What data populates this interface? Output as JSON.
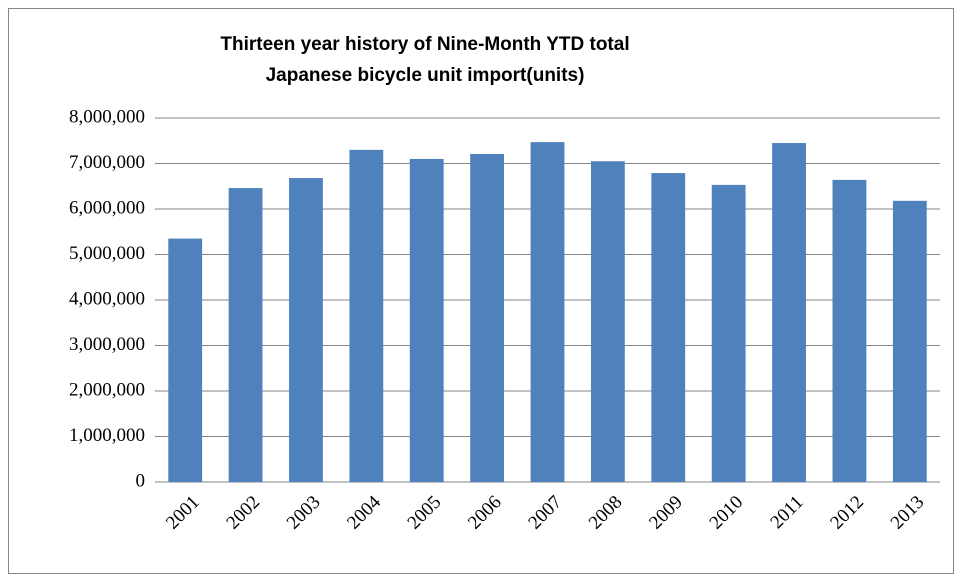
{
  "chart_data": {
    "type": "bar",
    "title": [
      "Thirteen year history of Nine-Month YTD total",
      "Japanese bicycle unit import(units)"
    ],
    "categories": [
      "2001",
      "2002",
      "2003",
      "2004",
      "2005",
      "2006",
      "2007",
      "2008",
      "2009",
      "2010",
      "2011",
      "2012",
      "2013"
    ],
    "values": [
      5350000,
      6460000,
      6680000,
      7300000,
      7100000,
      7210000,
      7470000,
      7050000,
      6790000,
      6530000,
      7450000,
      6640000,
      6180000
    ],
    "color": "#4f81bd",
    "ylim": [
      0,
      8000000
    ],
    "yticks": [
      0,
      {
        "value": 1000000,
        "label": "1,000,000"
      },
      {
        "value": 2000000,
        "label": "2,000,000"
      },
      {
        "value": 3000000,
        "label": "3,000,000"
      },
      {
        "value": 4000000,
        "label": "4,000,000"
      },
      {
        "value": 5000000,
        "label": "5,000,000"
      },
      {
        "value": 6000000,
        "label": "6,000,000"
      },
      {
        "value": 7000000,
        "label": "7,000,000"
      },
      {
        "value": 8000000,
        "label": "8,000,000"
      }
    ],
    "grid": true
  }
}
